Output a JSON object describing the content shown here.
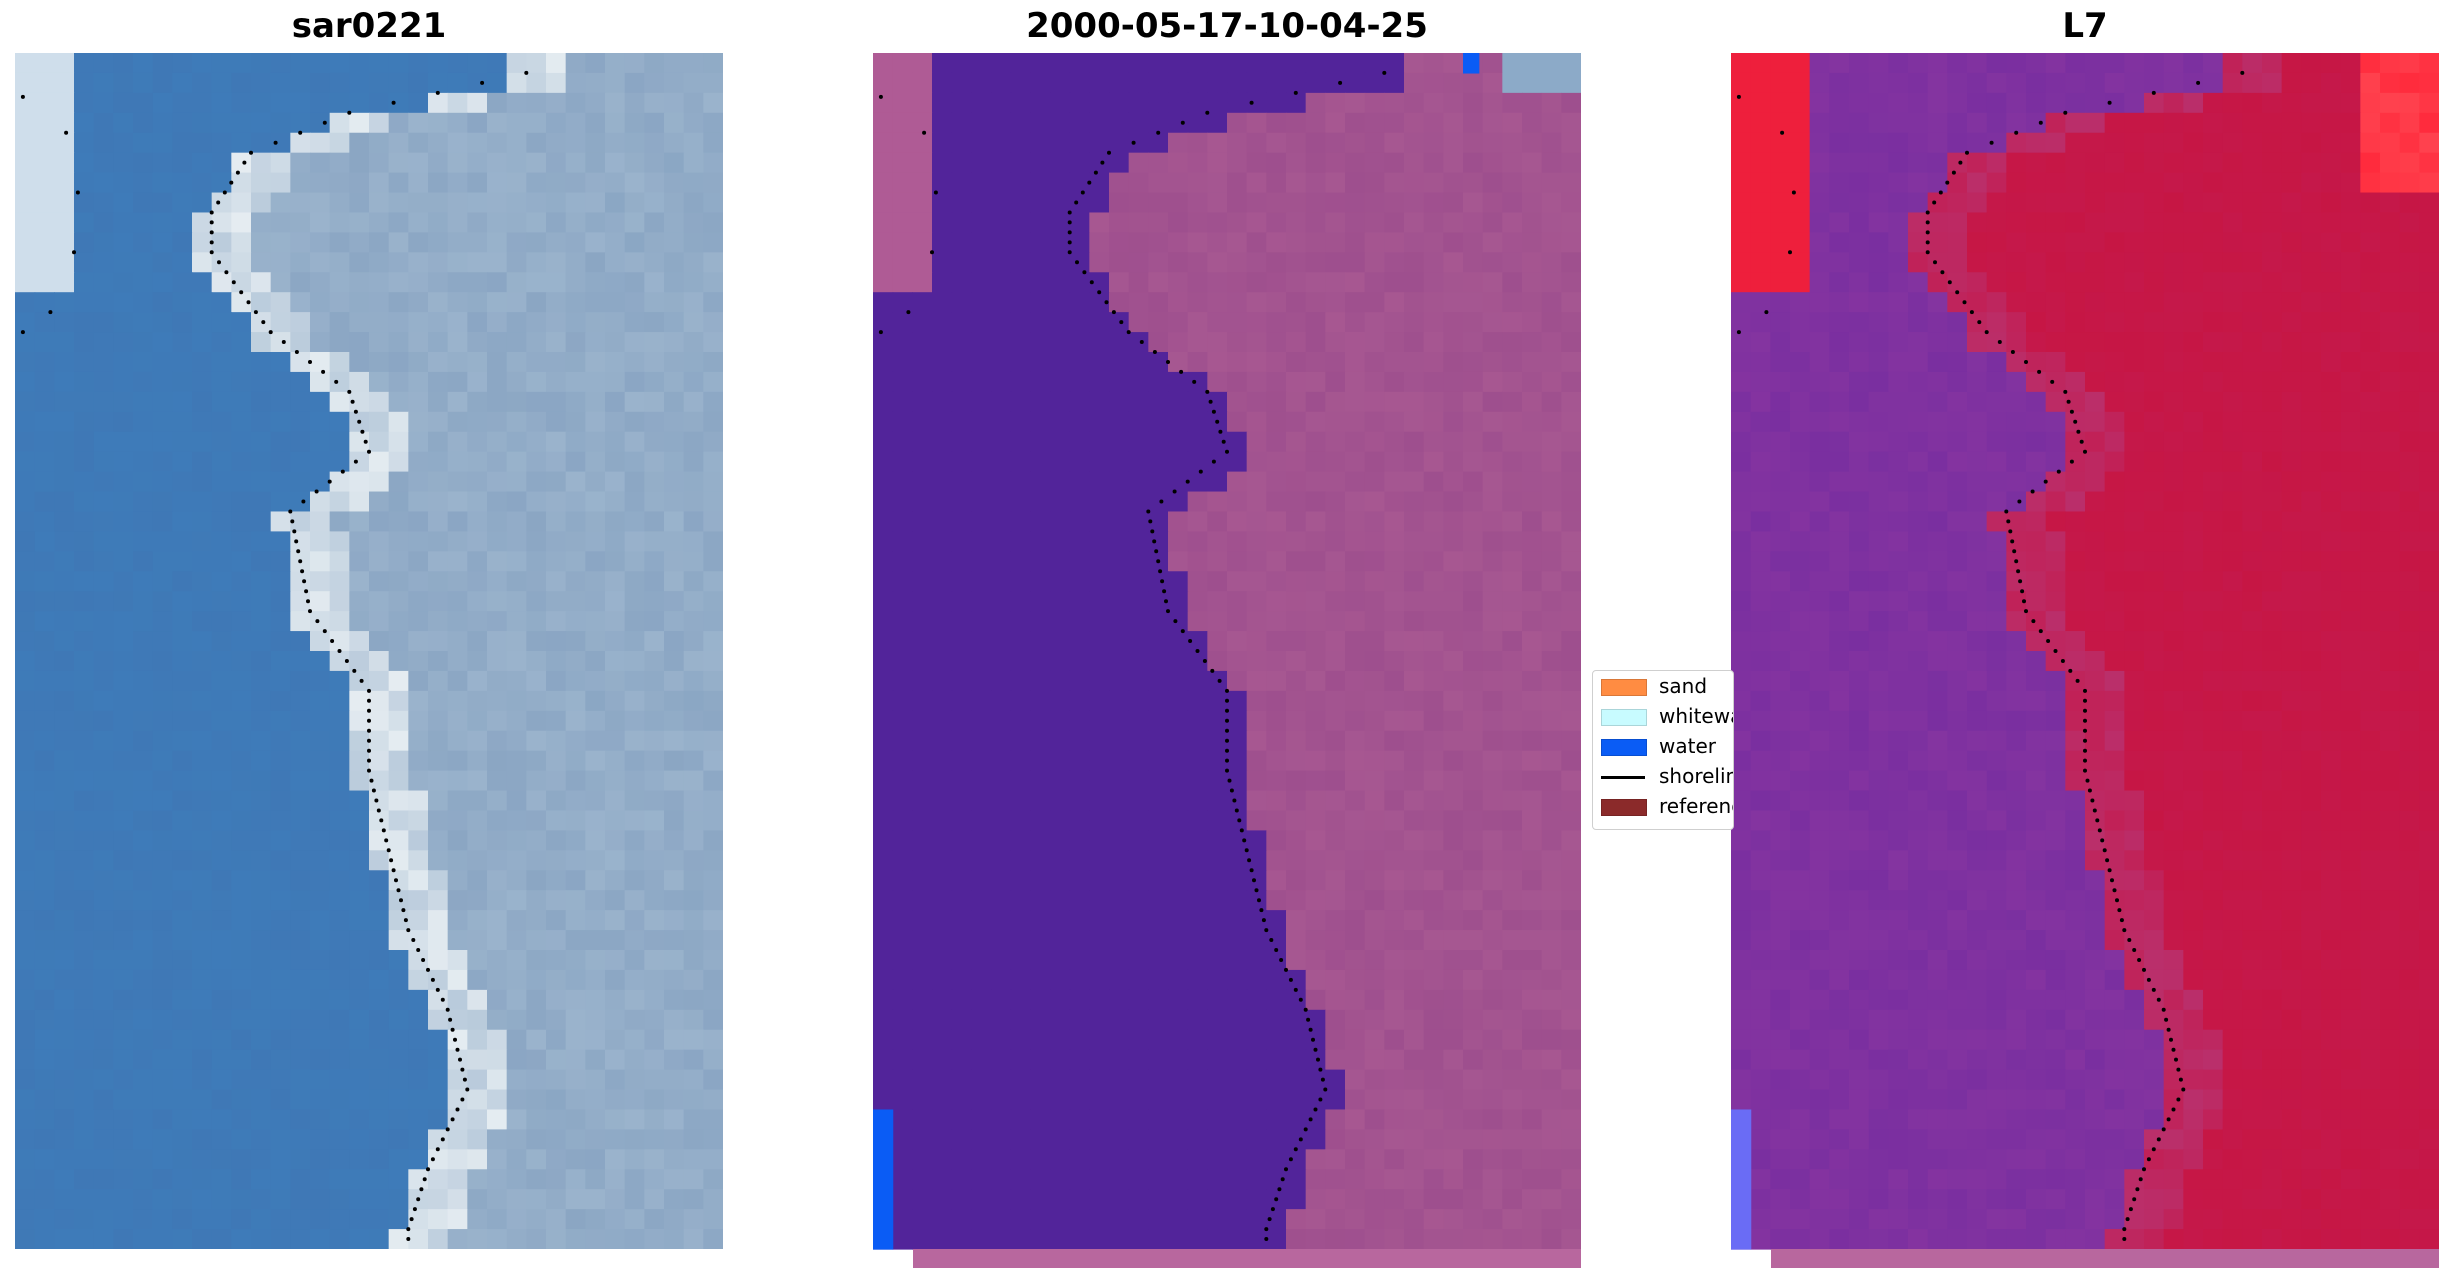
{
  "figure": {
    "panels": [
      {
        "title": "sar0221",
        "kind": "rgb"
      },
      {
        "title": "2000-05-17-10-04-25",
        "kind": "classified"
      },
      {
        "title": "L7",
        "kind": "index"
      }
    ],
    "legend": {
      "items": [
        {
          "label": "sand",
          "color": "#ff8c42",
          "type": "patch"
        },
        {
          "label": "whitewater",
          "color": "#c8fbff",
          "type": "patch"
        },
        {
          "label": "water",
          "color": "#0a5cf5",
          "type": "patch"
        },
        {
          "label": "shoreline",
          "color": "#000000",
          "type": "line"
        },
        {
          "label": "reference shoreline",
          "color": "#8b2a2a",
          "type": "patch"
        }
      ]
    },
    "colors": {
      "rgb_water": "#3f78b6",
      "rgb_land": "#9ab3cc",
      "rgb_white": "#f3f7f8",
      "class_water": "#52249a",
      "class_land": "#9e4f8e",
      "index_water": "#7a2fa0",
      "index_land": "#c5184a",
      "index_bright": "#ff2a3c"
    }
  }
}
